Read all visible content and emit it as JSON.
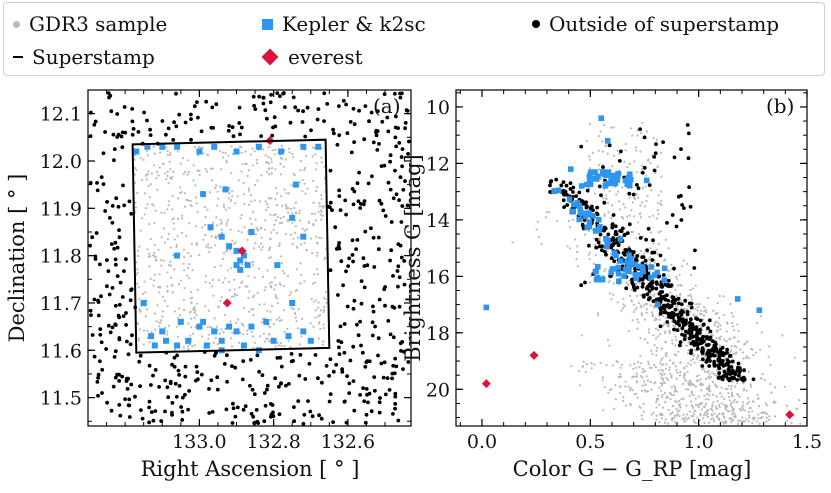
{
  "legend": {
    "gdr3": "GDR3 sample",
    "kepler": "Kepler & k2sc",
    "outside": "Outside of superstamp",
    "superstamp": "Superstamp",
    "everest": "everest"
  },
  "colors": {
    "gdr3": "#b9b9b9",
    "kepler": "#2e96f0",
    "outside": "#000000",
    "everest": "#dc143c"
  },
  "chart_data": [
    {
      "type": "scatter",
      "panel_label": "(a)",
      "xlabel": "Right Ascension [ ° ]",
      "ylabel": "Declination [ ° ]",
      "xlim": [
        133.3,
        132.43
      ],
      "ylim": [
        11.44,
        12.15
      ],
      "xticks": [
        "133.0",
        "132.8",
        "132.6"
      ],
      "xtick_values": [
        133.0,
        132.8,
        132.6
      ],
      "yticks": [
        "11.5",
        "11.6",
        "11.7",
        "11.8",
        "11.9",
        "12.0",
        "12.1"
      ],
      "ytick_values": [
        11.5,
        11.6,
        11.7,
        11.8,
        11.9,
        12.0,
        12.1
      ],
      "superstamp_corners": [
        [
          133.18,
          12.035
        ],
        [
          132.66,
          12.045
        ],
        [
          132.65,
          11.605
        ],
        [
          133.17,
          11.595
        ]
      ],
      "everest": [
        [
          132.81,
          12.043
        ],
        [
          132.885,
          11.81
        ],
        [
          132.925,
          11.7
        ]
      ],
      "kepler": [
        [
          133.17,
          12.02
        ],
        [
          133.14,
          12.03
        ],
        [
          133.1,
          12.03
        ],
        [
          133.06,
          12.03
        ],
        [
          133.0,
          12.02
        ],
        [
          132.96,
          12.03
        ],
        [
          132.9,
          12.02
        ],
        [
          132.84,
          12.03
        ],
        [
          132.78,
          12.02
        ],
        [
          132.72,
          12.03
        ],
        [
          132.68,
          12.03
        ],
        [
          132.74,
          11.95
        ],
        [
          132.93,
          11.94
        ],
        [
          132.99,
          11.93
        ],
        [
          132.75,
          11.88
        ],
        [
          132.72,
          11.84
        ],
        [
          132.92,
          11.82
        ],
        [
          132.9,
          11.81
        ],
        [
          132.88,
          11.8
        ],
        [
          132.89,
          11.79
        ],
        [
          132.9,
          11.78
        ],
        [
          132.87,
          11.78
        ],
        [
          132.89,
          11.77
        ],
        [
          132.94,
          11.84
        ],
        [
          132.97,
          11.86
        ],
        [
          133.06,
          11.8
        ],
        [
          132.86,
          11.85
        ],
        [
          132.79,
          11.78
        ],
        [
          132.75,
          11.7
        ],
        [
          133.1,
          11.64
        ],
        [
          133.05,
          11.66
        ],
        [
          133.0,
          11.65
        ],
        [
          132.96,
          11.64
        ],
        [
          132.92,
          11.65
        ],
        [
          132.9,
          11.64
        ],
        [
          132.86,
          11.65
        ],
        [
          132.82,
          11.66
        ],
        [
          132.8,
          11.62
        ],
        [
          132.76,
          11.63
        ],
        [
          132.72,
          11.64
        ],
        [
          132.7,
          11.62
        ],
        [
          133.12,
          11.61
        ],
        [
          133.06,
          11.61
        ],
        [
          133.03,
          11.62
        ],
        [
          132.98,
          11.61
        ],
        [
          132.94,
          11.6
        ],
        [
          132.88,
          11.61
        ],
        [
          132.84,
          11.6
        ],
        [
          133.09,
          11.62
        ],
        [
          133.15,
          11.7
        ],
        [
          133.13,
          11.63
        ],
        [
          132.99,
          11.66
        ],
        [
          132.94,
          11.62
        ]
      ]
    },
    {
      "type": "scatter",
      "panel_label": "(b)",
      "xlabel": "Color G − G_RP [mag]",
      "ylabel": "Brightness G [mag]",
      "xlim": [
        -0.12,
        1.5
      ],
      "ylim": [
        21.3,
        9.4
      ],
      "xticks": [
        "0.0",
        "0.5",
        "1.0",
        "1.5"
      ],
      "xtick_values": [
        0.0,
        0.5,
        1.0,
        1.5
      ],
      "yticks": [
        "10",
        "12",
        "14",
        "16",
        "18",
        "20"
      ],
      "ytick_values": [
        10,
        12,
        14,
        16,
        18,
        20
      ],
      "everest": [
        [
          0.02,
          19.8
        ],
        [
          0.24,
          18.8
        ],
        [
          1.42,
          20.9
        ]
      ],
      "kepler_extra": [
        [
          0.41,
          12.2
        ],
        [
          0.44,
          13.4
        ],
        [
          0.46,
          12.8
        ],
        [
          0.55,
          10.4
        ],
        [
          0.58,
          11.2
        ],
        [
          0.02,
          17.1
        ],
        [
          0.76,
          12.6
        ],
        [
          0.81,
          17.0
        ],
        [
          1.18,
          16.8
        ],
        [
          1.28,
          17.2
        ]
      ]
    }
  ]
}
